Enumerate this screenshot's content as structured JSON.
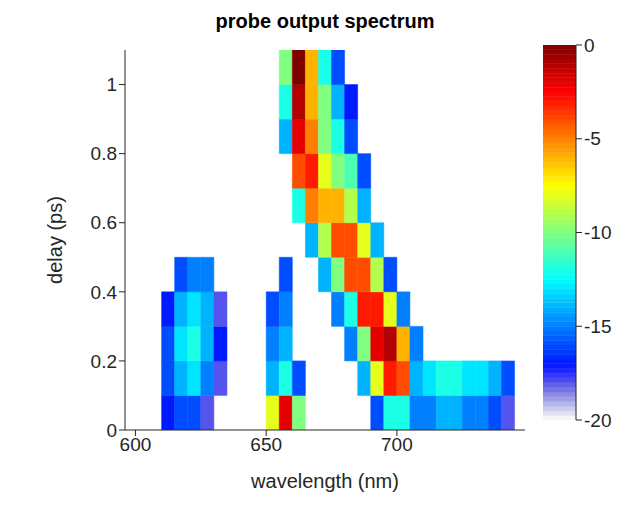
{
  "chart_data": {
    "type": "heatmap",
    "title": "probe output spectrum",
    "x_label": "wavelength (nm)",
    "y_label": "delay (ps)",
    "x": [
      607.5,
      612.5,
      617.5,
      622.5,
      627.5,
      632.5,
      637.5,
      642.5,
      647.5,
      652.5,
      657.5,
      662.5,
      667.5,
      672.5,
      677.5,
      682.5,
      687.5,
      692.5,
      697.5,
      702.5,
      707.5,
      712.5,
      717.5,
      722.5,
      727.5,
      732.5,
      737.5,
      742.5
    ],
    "y": [
      0.05,
      0.15,
      0.25,
      0.35,
      0.45,
      0.55,
      0.65,
      0.75,
      0.85,
      0.95,
      1.05
    ],
    "z": [
      [
        null,
        -17,
        -16,
        -16,
        -18,
        null,
        null,
        null,
        null,
        -8,
        -2,
        -10,
        null,
        null,
        null,
        null,
        null,
        -16,
        -12,
        -12,
        -15,
        -15,
        -14,
        -14,
        -15,
        -15,
        -16,
        -18
      ],
      [
        null,
        -16,
        -14,
        -13,
        -15,
        -18,
        null,
        null,
        null,
        -14,
        -12,
        -16,
        null,
        null,
        null,
        null,
        -14,
        -8,
        -3,
        -4,
        -14,
        -13,
        -12,
        -12,
        -13,
        -13,
        -14,
        -16
      ],
      [
        null,
        -16,
        -13,
        -12,
        -14,
        -17,
        null,
        null,
        null,
        -15,
        -14,
        null,
        null,
        null,
        null,
        -15,
        -10,
        -2,
        -1,
        -6,
        -15,
        null,
        null,
        null,
        null,
        null,
        null,
        null
      ],
      [
        null,
        -17,
        -14,
        -13,
        -14,
        -18,
        null,
        null,
        null,
        -16,
        -15,
        null,
        null,
        null,
        -15,
        -12,
        -3,
        -3,
        -8,
        -15,
        null,
        null,
        null,
        null,
        null,
        null,
        null,
        null
      ],
      [
        null,
        null,
        -16,
        -15,
        -15,
        null,
        null,
        null,
        null,
        null,
        -16,
        null,
        null,
        -14,
        -10,
        -4,
        -4,
        -9,
        -16,
        null,
        null,
        null,
        null,
        null,
        null,
        null,
        null,
        null
      ],
      [
        null,
        null,
        null,
        null,
        null,
        null,
        null,
        null,
        null,
        null,
        null,
        null,
        -14,
        -9,
        -4,
        -4,
        -8,
        -14,
        null,
        null,
        null,
        null,
        null,
        null,
        null,
        null,
        null,
        null
      ],
      [
        null,
        null,
        null,
        null,
        null,
        null,
        null,
        null,
        null,
        null,
        null,
        -12,
        -5,
        -6,
        -6,
        -9,
        -14,
        null,
        null,
        null,
        null,
        null,
        null,
        null,
        null,
        null,
        null,
        null
      ],
      [
        null,
        null,
        null,
        null,
        null,
        null,
        null,
        null,
        null,
        null,
        null,
        -4,
        -3,
        -8,
        -10,
        -11,
        -16,
        null,
        null,
        null,
        null,
        null,
        null,
        null,
        null,
        null,
        null,
        null
      ],
      [
        null,
        null,
        null,
        null,
        null,
        null,
        null,
        null,
        null,
        null,
        -14,
        -2,
        -5,
        -10,
        -12,
        -16,
        null,
        null,
        null,
        null,
        null,
        null,
        null,
        null,
        null,
        null,
        null,
        null
      ],
      [
        null,
        null,
        null,
        null,
        null,
        null,
        null,
        null,
        null,
        null,
        -12,
        -1,
        -6,
        -10,
        -14,
        -17,
        null,
        null,
        null,
        null,
        null,
        null,
        null,
        null,
        null,
        null,
        null,
        null
      ],
      [
        null,
        null,
        null,
        null,
        null,
        null,
        null,
        null,
        null,
        null,
        -10,
        0,
        -6,
        -12,
        -16,
        null,
        null,
        null,
        null,
        null,
        null,
        null,
        null,
        null,
        null,
        null,
        null,
        null
      ]
    ],
    "xlim": [
      596,
      749
    ],
    "ylim": [
      0,
      1.1
    ],
    "xticks": [
      600,
      650,
      700
    ],
    "yticks": [
      0,
      0.2,
      0.4,
      0.6,
      0.8,
      1
    ],
    "colorbar": {
      "range": [
        -20,
        0
      ],
      "ticks": [
        0,
        -5,
        -10,
        -15,
        -20
      ]
    }
  }
}
